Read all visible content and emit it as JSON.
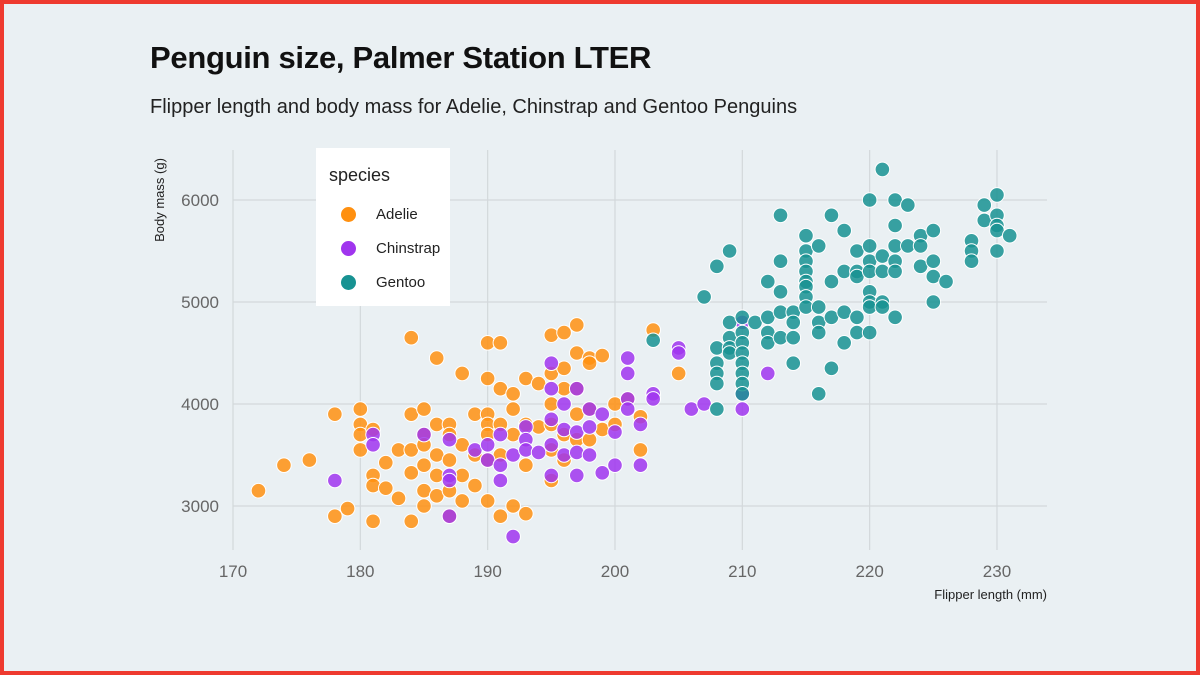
{
  "chart_data": {
    "type": "scatter",
    "title": "Penguin size, Palmer Station LTER",
    "subtitle": "Flipper length and body mass for Adelie, Chinstrap and Gentoo Penguins",
    "xlabel": "Flipper length (mm)",
    "ylabel": "Body mass (g)",
    "xlim": [
      168,
      234
    ],
    "ylim": [
      2550,
      6480
    ],
    "xticks": [
      "170",
      "180",
      "190",
      "200",
      "210",
      "220",
      "230"
    ],
    "yticks": [
      "3000",
      "4000",
      "5000",
      "6000"
    ],
    "grid": true,
    "legend": {
      "title": "species",
      "placement": "top-left"
    },
    "series": [
      {
        "name": "Adelie",
        "color": "#ff9010",
        "points": [
          [
            172,
            3150
          ],
          [
            174,
            3400
          ],
          [
            176,
            3450
          ],
          [
            178,
            3900
          ],
          [
            178,
            2900
          ],
          [
            179,
            2975
          ],
          [
            180,
            3950
          ],
          [
            180,
            3800
          ],
          [
            180,
            3700
          ],
          [
            180,
            3550
          ],
          [
            181,
            3750
          ],
          [
            181,
            3300
          ],
          [
            181,
            3200
          ],
          [
            181,
            2850
          ],
          [
            182,
            3425
          ],
          [
            182,
            3175
          ],
          [
            183,
            3550
          ],
          [
            183,
            3075
          ],
          [
            184,
            4650
          ],
          [
            184,
            3900
          ],
          [
            184,
            3550
          ],
          [
            184,
            3325
          ],
          [
            184,
            2850
          ],
          [
            185,
            3950
          ],
          [
            185,
            3700
          ],
          [
            185,
            3600
          ],
          [
            185,
            3400
          ],
          [
            185,
            3150
          ],
          [
            185,
            3000
          ],
          [
            186,
            4450
          ],
          [
            186,
            3800
          ],
          [
            186,
            3500
          ],
          [
            186,
            3300
          ],
          [
            186,
            3100
          ],
          [
            187,
            3800
          ],
          [
            187,
            3700
          ],
          [
            187,
            3450
          ],
          [
            187,
            3150
          ],
          [
            187,
            2900
          ],
          [
            188,
            4300
          ],
          [
            188,
            3600
          ],
          [
            188,
            3300
          ],
          [
            188,
            3050
          ],
          [
            189,
            3900
          ],
          [
            189,
            3500
          ],
          [
            189,
            3200
          ],
          [
            190,
            4600
          ],
          [
            190,
            4250
          ],
          [
            190,
            3900
          ],
          [
            190,
            3800
          ],
          [
            190,
            3700
          ],
          [
            190,
            3450
          ],
          [
            190,
            3050
          ],
          [
            191,
            4600
          ],
          [
            191,
            4150
          ],
          [
            191,
            3800
          ],
          [
            191,
            3500
          ],
          [
            191,
            2900
          ],
          [
            192,
            4100
          ],
          [
            192,
            3950
          ],
          [
            192,
            3700
          ],
          [
            192,
            3000
          ],
          [
            193,
            4250
          ],
          [
            193,
            3800
          ],
          [
            193,
            3400
          ],
          [
            193,
            2925
          ],
          [
            194,
            4200
          ],
          [
            194,
            3775
          ],
          [
            195,
            4675
          ],
          [
            195,
            4300
          ],
          [
            195,
            4000
          ],
          [
            195,
            3800
          ],
          [
            195,
            3550
          ],
          [
            195,
            3250
          ],
          [
            196,
            4700
          ],
          [
            196,
            4350
          ],
          [
            196,
            4150
          ],
          [
            196,
            3700
          ],
          [
            196,
            3450
          ],
          [
            197,
            4775
          ],
          [
            197,
            4500
          ],
          [
            197,
            4150
          ],
          [
            197,
            3900
          ],
          [
            197,
            3650
          ],
          [
            198,
            4450
          ],
          [
            198,
            4400
          ],
          [
            198,
            3950
          ],
          [
            198,
            3650
          ],
          [
            199,
            4475
          ],
          [
            199,
            3750
          ],
          [
            200,
            4000
          ],
          [
            200,
            3800
          ],
          [
            201,
            4050
          ],
          [
            202,
            3875
          ],
          [
            202,
            3550
          ],
          [
            203,
            4725
          ],
          [
            205,
            4300
          ]
        ]
      },
      {
        "name": "Chinstrap",
        "color": "#a035ee",
        "points": [
          [
            178,
            3250
          ],
          [
            181,
            3700
          ],
          [
            181,
            3600
          ],
          [
            185,
            3700
          ],
          [
            187,
            3650
          ],
          [
            187,
            3300
          ],
          [
            187,
            3250
          ],
          [
            187,
            2900
          ],
          [
            189,
            3550
          ],
          [
            190,
            3600
          ],
          [
            190,
            3450
          ],
          [
            191,
            3700
          ],
          [
            191,
            3400
          ],
          [
            191,
            3250
          ],
          [
            192,
            2700
          ],
          [
            192,
            3500
          ],
          [
            193,
            3775
          ],
          [
            193,
            3650
          ],
          [
            193,
            3550
          ],
          [
            194,
            3525
          ],
          [
            195,
            4400
          ],
          [
            195,
            4150
          ],
          [
            195,
            3850
          ],
          [
            195,
            3600
          ],
          [
            195,
            3300
          ],
          [
            196,
            4000
          ],
          [
            196,
            3750
          ],
          [
            196,
            3500
          ],
          [
            197,
            4150
          ],
          [
            197,
            3725
          ],
          [
            197,
            3525
          ],
          [
            197,
            3300
          ],
          [
            198,
            3950
          ],
          [
            198,
            3775
          ],
          [
            198,
            3500
          ],
          [
            199,
            3900
          ],
          [
            199,
            3325
          ],
          [
            200,
            3725
          ],
          [
            200,
            3400
          ],
          [
            201,
            4450
          ],
          [
            201,
            4300
          ],
          [
            201,
            4050
          ],
          [
            201,
            3950
          ],
          [
            202,
            3800
          ],
          [
            202,
            3400
          ],
          [
            203,
            4100
          ],
          [
            203,
            4050
          ],
          [
            205,
            4550
          ],
          [
            205,
            4500
          ],
          [
            206,
            3950
          ],
          [
            207,
            4000
          ],
          [
            210,
            4800
          ],
          [
            210,
            4100
          ],
          [
            210,
            3950
          ],
          [
            212,
            4300
          ]
        ]
      },
      {
        "name": "Gentoo",
        "color": "#179292",
        "points": [
          [
            203,
            4625
          ],
          [
            207,
            5050
          ],
          [
            208,
            5350
          ],
          [
            208,
            4550
          ],
          [
            208,
            4400
          ],
          [
            208,
            4300
          ],
          [
            208,
            4200
          ],
          [
            208,
            3950
          ],
          [
            209,
            5500
          ],
          [
            209,
            4800
          ],
          [
            209,
            4650
          ],
          [
            209,
            4550
          ],
          [
            209,
            4500
          ],
          [
            210,
            4850
          ],
          [
            210,
            4700
          ],
          [
            210,
            4600
          ],
          [
            210,
            4500
          ],
          [
            210,
            4400
          ],
          [
            210,
            4300
          ],
          [
            210,
            4200
          ],
          [
            210,
            4100
          ],
          [
            211,
            4800
          ],
          [
            212,
            5200
          ],
          [
            212,
            4850
          ],
          [
            212,
            4700
          ],
          [
            212,
            4600
          ],
          [
            213,
            5850
          ],
          [
            213,
            5400
          ],
          [
            213,
            5100
          ],
          [
            213,
            4900
          ],
          [
            213,
            4650
          ],
          [
            214,
            4900
          ],
          [
            214,
            4800
          ],
          [
            214,
            4650
          ],
          [
            214,
            4400
          ],
          [
            215,
            5650
          ],
          [
            215,
            5500
          ],
          [
            215,
            5400
          ],
          [
            215,
            5300
          ],
          [
            215,
            5200
          ],
          [
            215,
            5150
          ],
          [
            215,
            5050
          ],
          [
            215,
            4950
          ],
          [
            216,
            5550
          ],
          [
            216,
            4950
          ],
          [
            216,
            4800
          ],
          [
            216,
            4700
          ],
          [
            216,
            4100
          ],
          [
            217,
            5850
          ],
          [
            217,
            5200
          ],
          [
            217,
            4850
          ],
          [
            217,
            4350
          ],
          [
            218,
            5700
          ],
          [
            218,
            5300
          ],
          [
            218,
            4900
          ],
          [
            218,
            4600
          ],
          [
            219,
            5500
          ],
          [
            219,
            5300
          ],
          [
            219,
            5250
          ],
          [
            219,
            4850
          ],
          [
            219,
            4700
          ],
          [
            220,
            6000
          ],
          [
            220,
            5550
          ],
          [
            220,
            5400
          ],
          [
            220,
            5300
          ],
          [
            220,
            5100
          ],
          [
            220,
            5000
          ],
          [
            220,
            4950
          ],
          [
            220,
            4700
          ],
          [
            221,
            6300
          ],
          [
            221,
            5450
          ],
          [
            221,
            5300
          ],
          [
            221,
            5000
          ],
          [
            221,
            4950
          ],
          [
            222,
            6000
          ],
          [
            222,
            5750
          ],
          [
            222,
            5550
          ],
          [
            222,
            5400
          ],
          [
            222,
            5300
          ],
          [
            222,
            4850
          ],
          [
            223,
            5950
          ],
          [
            223,
            5550
          ],
          [
            224,
            5650
          ],
          [
            224,
            5550
          ],
          [
            224,
            5350
          ],
          [
            225,
            5700
          ],
          [
            225,
            5400
          ],
          [
            225,
            5250
          ],
          [
            225,
            5000
          ],
          [
            226,
            5200
          ],
          [
            228,
            5600
          ],
          [
            228,
            5500
          ],
          [
            228,
            5400
          ],
          [
            229,
            5950
          ],
          [
            229,
            5800
          ],
          [
            230,
            6050
          ],
          [
            230,
            5850
          ],
          [
            230,
            5750
          ],
          [
            230,
            5700
          ],
          [
            230,
            5500
          ],
          [
            231,
            5650
          ]
        ]
      }
    ]
  }
}
